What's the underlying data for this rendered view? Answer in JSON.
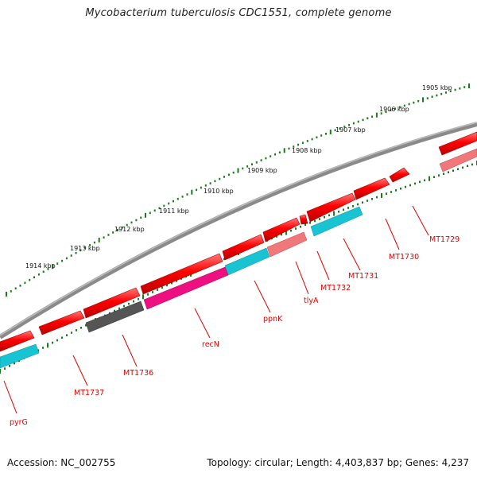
{
  "title": "Mycobacterium tuberculosis CDC1551, complete genome",
  "footer": {
    "accession": "Accession: NC_002755",
    "summary": "Topology: circular; Length: 4,403,837 bp; Genes: 4,237"
  },
  "colors": {
    "backbone": "#8a8a8a",
    "tick": "#1a7a1a",
    "cds": "#ff0000",
    "label": "#e00000",
    "cyan": "#19c4d2",
    "magenta": "#ee1080",
    "gray": "#555555",
    "salmon": "#f0787a",
    "teal": "#14a0a0"
  },
  "scale_labels": [
    "1905 kbp",
    "1906 kbp",
    "1907 kbp",
    "1908 kbp",
    "1909 kbp",
    "1910 kbp",
    "1911 kbp",
    "1912 kbp",
    "1913 kbp",
    "1914 kbp"
  ],
  "gene_labels": [
    "MT1729",
    "MT1730",
    "MT1731",
    "MT1732",
    "tlyA",
    "ppnK",
    "recN",
    "MT1736",
    "MT1737",
    "pyrG"
  ]
}
